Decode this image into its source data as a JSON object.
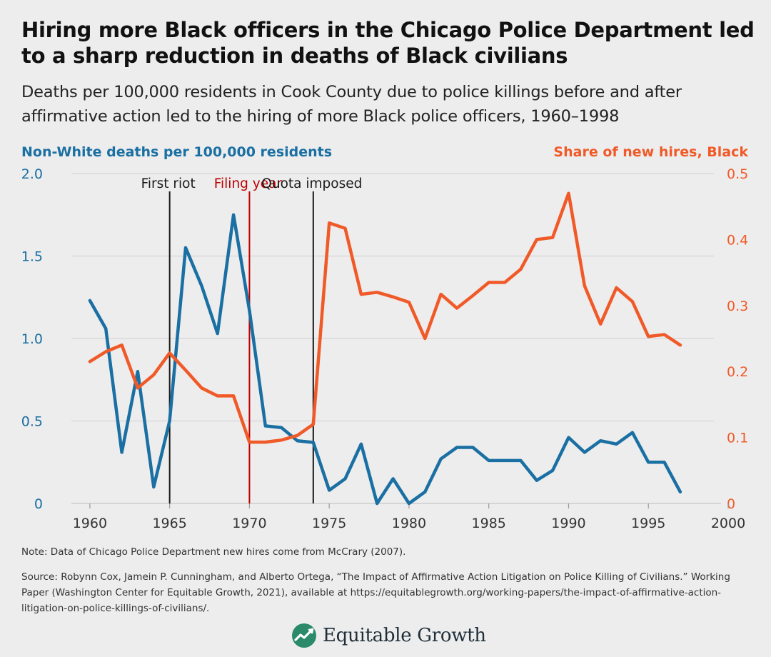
{
  "title": "Hiring more Black officers in the Chicago Police Department led to a sharp reduction in deaths of Black civilians",
  "subtitle": "Deaths per 100,000 residents in Cook County due to police killings before and after affirmative action led to the hiring of more Black police officers, 1960–1998",
  "note": "Note: Data of Chicago Police Department new hires come from McCrary (2007).",
  "source": "Source: Robynn Cox, Jamein P. Cunningham, and Alberto Ortega, “The Impact of Affirmative Action Litigation on Police Killing of Civilians.” Working Paper (Washington Center for Equitable Growth, 2021), available at https://equitablegrowth.org/working-papers/the-impact-of-affirmative-action-litigation-on-police-killings-of-civilians/.",
  "brand": {
    "name": "Equitable Growth",
    "logo_icon": "rising-line-leaf-icon"
  },
  "colors": {
    "blue": "#1a6fa3",
    "orange": "#f05a28",
    "red": "#c00000",
    "black": "#1a1a1a",
    "grid": "#cfcfcf",
    "background": "#ededed"
  },
  "chart_data": {
    "type": "line",
    "x_ticks": [
      "1960",
      "1965",
      "1970",
      "1975",
      "1980",
      "1985",
      "1990",
      "1995",
      "2000"
    ],
    "x_range": [
      1957.5,
      2000
    ],
    "left_axis": {
      "label": "Non-White deaths per 100,000 residents",
      "range": [
        0,
        2.0
      ],
      "ticks": [
        "0",
        "0.5",
        "1.0",
        "1.5",
        "2.0"
      ],
      "tick_values": [
        0,
        0.5,
        1.0,
        1.5,
        2.0
      ]
    },
    "right_axis": {
      "label": "Share of new hires, Black",
      "range": [
        0,
        0.5
      ],
      "ticks": [
        "0",
        "0.1",
        "0.2",
        "0.3",
        "0.4",
        "0.5"
      ],
      "tick_values": [
        0,
        0.1,
        0.2,
        0.3,
        0.4,
        0.5
      ]
    },
    "series": [
      {
        "name": "Non-White deaths per 100,000 residents",
        "axis": "left",
        "color": "#1a6fa3",
        "x": [
          1960,
          1961,
          1962,
          1963,
          1964,
          1965,
          1966,
          1967,
          1968,
          1969,
          1970,
          1971,
          1972,
          1973,
          1974,
          1975,
          1976,
          1977,
          1978,
          1979,
          1980,
          1981,
          1982,
          1983,
          1984,
          1985,
          1986,
          1987,
          1988,
          1989,
          1990,
          1991,
          1992,
          1993,
          1994,
          1995,
          1996,
          1997
        ],
        "y": [
          1.23,
          1.06,
          0.31,
          0.8,
          0.1,
          0.5,
          1.55,
          1.32,
          1.03,
          1.75,
          1.17,
          0.47,
          0.46,
          0.38,
          0.37,
          0.08,
          0.15,
          0.36,
          0.0,
          0.15,
          0.0,
          0.07,
          0.27,
          0.34,
          0.34,
          0.26,
          0.26,
          0.26,
          0.14,
          0.2,
          0.4,
          0.31,
          0.38,
          0.36,
          0.43,
          0.25,
          0.25,
          0.07
        ]
      },
      {
        "name": "Share of new hires, Black",
        "axis": "right",
        "color": "#f05a28",
        "x": [
          1960,
          1961,
          1962,
          1963,
          1964,
          1965,
          1966,
          1967,
          1968,
          1969,
          1970,
          1971,
          1972,
          1973,
          1974,
          1975,
          1976,
          1977,
          1978,
          1979,
          1980,
          1981,
          1982,
          1983,
          1984,
          1985,
          1986,
          1987,
          1988,
          1989,
          1990,
          1991,
          1992,
          1993,
          1994,
          1995,
          1996,
          1997
        ],
        "y": [
          0.215,
          0.23,
          0.24,
          0.175,
          0.195,
          0.228,
          0.202,
          0.175,
          0.163,
          0.163,
          0.093,
          0.093,
          0.096,
          0.103,
          0.12,
          0.425,
          0.417,
          0.317,
          0.32,
          0.313,
          0.305,
          0.25,
          0.317,
          0.296,
          0.315,
          0.335,
          0.335,
          0.355,
          0.4,
          0.403,
          0.47,
          0.33,
          0.272,
          0.327,
          0.306,
          0.253,
          0.256,
          0.24
        ]
      }
    ],
    "annotations": [
      {
        "label": "First riot",
        "x": 1965,
        "color": "#1a1a1a"
      },
      {
        "label": "Filing year",
        "x": 1970,
        "color": "#c00000"
      },
      {
        "label": "Quota imposed",
        "x": 1974,
        "color": "#1a1a1a"
      }
    ],
    "grid": true
  }
}
